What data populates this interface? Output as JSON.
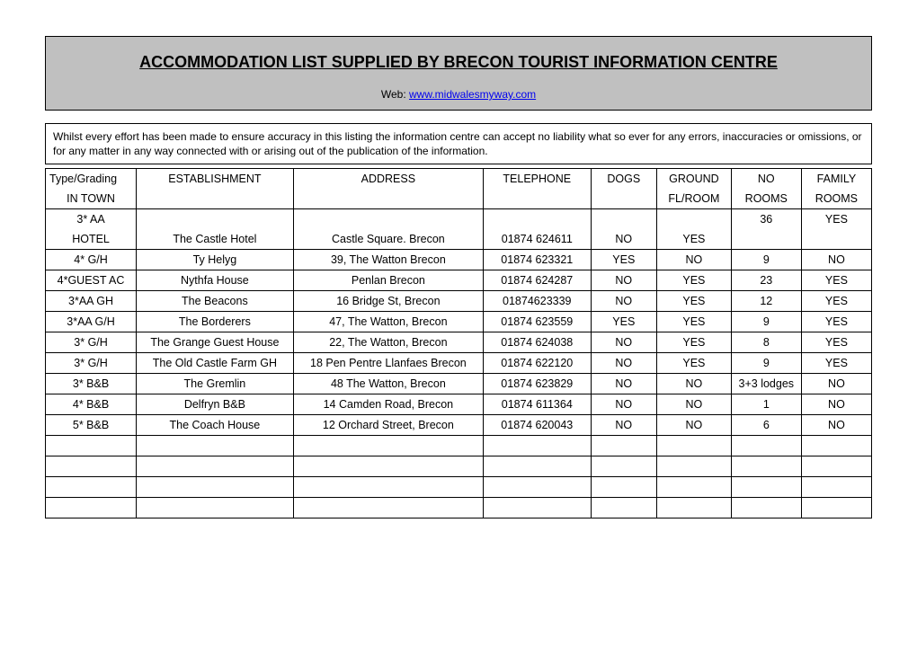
{
  "background_color": "#ffffff",
  "header": {
    "background_color": "#c0c0c0",
    "border_color": "#000000",
    "title": "ACCOMMODATION LIST SUPPLIED BY BRECON TOURIST INFORMATION CENTRE",
    "title_fontsize": 18,
    "web_label": "Web:",
    "web_url_text": "www.midwalesmyway.com",
    "link_color": "#0000ee"
  },
  "disclaimer": "Whilst every effort has been made to ensure accuracy in this listing the information centre can accept no liability what so ever for any errors, inaccuracies or omissions, or for any matter in any way connected with or arising out of the publication of the information.",
  "table": {
    "border_color": "#000000",
    "font_family": "Trebuchet MS",
    "font_size": 12.5,
    "columns": [
      {
        "line1": "Type/Grading",
        "line2": "IN TOWN"
      },
      {
        "line1": "ESTABLISHMENT",
        "line2": ""
      },
      {
        "line1": "ADDRESS",
        "line2": ""
      },
      {
        "line1": "TELEPHONE",
        "line2": ""
      },
      {
        "line1": "DOGS",
        "line2": ""
      },
      {
        "line1": "GROUND",
        "line2": "FL/ROOM"
      },
      {
        "line1": "NO",
        "line2": "ROOMS"
      },
      {
        "line1": "FAMILY",
        "line2": "ROOMS"
      }
    ],
    "rows": [
      {
        "type_line1": "3* AA",
        "type_line2": "HOTEL",
        "establishment": "The Castle Hotel",
        "address": "Castle Square. Brecon",
        "telephone": "01874 624611",
        "dogs": "NO",
        "ground": "YES",
        "rooms": "36",
        "family": "YES"
      },
      {
        "type_line1": "4* G/H",
        "type_line2": "",
        "establishment": "Ty Helyg",
        "address": "39, The Watton Brecon",
        "telephone": "01874 623321",
        "dogs": "YES",
        "ground": "NO",
        "rooms": "9",
        "family": "NO"
      },
      {
        "type_line1": "4*GUEST AC",
        "type_line2": "",
        "establishment": "Nythfa House",
        "address": "Penlan Brecon",
        "telephone": "01874 624287",
        "dogs": "NO",
        "ground": "YES",
        "rooms": "23",
        "family": "YES"
      },
      {
        "type_line1": "3*AA  GH",
        "type_line2": "",
        "establishment": "The Beacons",
        "address": "16 Bridge St, Brecon",
        "telephone": "01874623339",
        "dogs": "NO",
        "ground": "YES",
        "rooms": "12",
        "family": "YES"
      },
      {
        "type_line1": "3*AA G/H",
        "type_line2": "",
        "establishment": "The Borderers",
        "address": "47, The Watton, Brecon",
        "telephone": "01874 623559",
        "dogs": "YES",
        "ground": "YES",
        "rooms": "9",
        "family": "YES"
      },
      {
        "type_line1": "3* G/H",
        "type_line2": "",
        "establishment": "The Grange Guest House",
        "address": "22, The Watton, Brecon",
        "telephone": "01874 624038",
        "dogs": "NO",
        "ground": "YES",
        "rooms": "8",
        "family": "YES"
      },
      {
        "type_line1": "3*  G/H",
        "type_line2": "",
        "establishment": "The Old Castle  Farm GH",
        "address": "18 Pen Pentre Llanfaes Brecon",
        "telephone": "01874 622120",
        "dogs": "NO",
        "ground": "YES",
        "rooms": "9",
        "family": "YES"
      },
      {
        "type_line1": "3* B&B",
        "type_line2": "",
        "establishment": "The Gremlin",
        "address": "48 The Watton, Brecon",
        "telephone": "01874 623829",
        "dogs": "NO",
        "ground": "NO",
        "rooms": "3+3 lodges",
        "family": "NO"
      },
      {
        "type_line1": "4* B&B",
        "type_line2": "",
        "establishment": "Delfryn B&B",
        "address": "14 Camden Road, Brecon",
        "telephone": "01874 611364",
        "dogs": "NO",
        "ground": "NO",
        "rooms": "1",
        "family": "NO"
      },
      {
        "type_line1": "5* B&B",
        "type_line2": "",
        "establishment": "The Coach House",
        "address": "12 Orchard Street, Brecon",
        "telephone": "01874 620043",
        "dogs": "NO",
        "ground": "NO",
        "rooms": "6",
        "family": "NO"
      }
    ],
    "empty_rows": 4
  }
}
